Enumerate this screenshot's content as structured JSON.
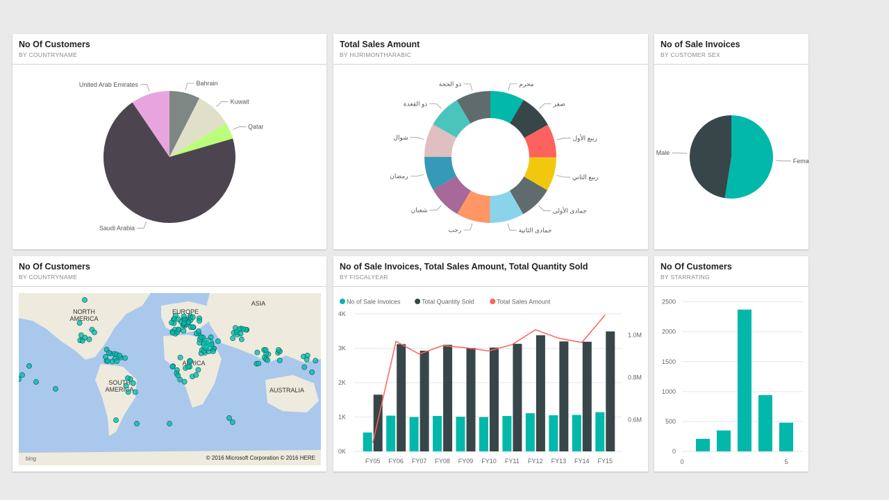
{
  "colors": {
    "teal": "#01b8aa",
    "dark": "#374649",
    "red": "#fd625e",
    "yellow": "#f2c80f",
    "gray": "#5f6b6d",
    "light_blue": "#8ad4eb",
    "orange": "#fe9666",
    "purple": "#a66999",
    "blue": "#3599b8",
    "pink": "#dfbfbf",
    "mint": "#4ac5bb",
    "plum": "#4c454f",
    "lavender": "#e8a5dd",
    "sage": "#7f8785",
    "cream": "#e0e0c8",
    "lime": "#baff7a"
  },
  "tiles": {
    "customers_by_country": {
      "title": "No Of Customers",
      "subtitle": "BY COUNTRYNAME",
      "chart_data": {
        "type": "pie",
        "slices": [
          {
            "label": "Bahrain",
            "value": 7.5,
            "color": "#7f8785"
          },
          {
            "label": "Kuwait",
            "value": 9,
            "color": "#e0e0c8"
          },
          {
            "label": "Qatar",
            "value": 4,
            "color": "#baff7a"
          },
          {
            "label": "Saudi Arabia",
            "value": 70,
            "color": "#4c454f"
          },
          {
            "label": "United Arab Emirates",
            "value": 9.5,
            "color": "#e8a5dd"
          }
        ]
      }
    },
    "sales_by_month": {
      "title": "Total Sales Amount",
      "subtitle": "BY HIJRIMONTHARABIC",
      "chart_data": {
        "type": "pie",
        "donut": true,
        "slices": [
          {
            "label": "محرم",
            "value": 8.4,
            "color": "#01b8aa"
          },
          {
            "label": "صفر",
            "value": 8.5,
            "color": "#374649"
          },
          {
            "label": "ربيع الأول",
            "value": 8.3,
            "color": "#fd625e"
          },
          {
            "label": "ربيع الثاني",
            "value": 8.3,
            "color": "#f2c80f"
          },
          {
            "label": "جمادى الأولى",
            "value": 8.3,
            "color": "#5f6b6d"
          },
          {
            "label": "جمادى الثانية",
            "value": 8.4,
            "color": "#8ad4eb"
          },
          {
            "label": "رجب",
            "value": 8.3,
            "color": "#fe9666"
          },
          {
            "label": "شعبان",
            "value": 8.4,
            "color": "#a66999"
          },
          {
            "label": "رمضان",
            "value": 8.3,
            "color": "#3599b8"
          },
          {
            "label": "شوال",
            "value": 8.2,
            "color": "#dfbfbf"
          },
          {
            "label": "ذو القعدة",
            "value": 8.3,
            "color": "#4ac5bb"
          },
          {
            "label": "ذو الحجة",
            "value": 8.5,
            "color": "#5f6b6d"
          }
        ]
      }
    },
    "invoices_by_sex": {
      "title": "No of Sale Invoices",
      "subtitle": "BY CUSTOMER SEX",
      "chart_data": {
        "type": "pie",
        "slices": [
          {
            "label": "Female",
            "value": 52.5,
            "color": "#01b8aa"
          },
          {
            "label": "Male",
            "value": 47.5,
            "color": "#374649"
          }
        ]
      }
    },
    "customers_map": {
      "title": "No Of Customers",
      "subtitle": "BY COUNTRYNAME",
      "region_labels": [
        "NORTH AMERICA",
        "SOUTH AMERICA",
        "EUROPE",
        "AFRICA",
        "ASIA",
        "AUSTRALIA"
      ],
      "copyright": "© 2016 Microsoft Corporation     © 2016 HERE",
      "bing": "bing"
    },
    "fiscal_combo": {
      "title": "No of Sale Invoices, Total Sales Amount, Total Quantity Sold",
      "subtitle": "BY FISCALYEAR",
      "chart_data": {
        "type": "bar",
        "categories": [
          "FY05",
          "FY06",
          "FY07",
          "FY08",
          "FY09",
          "FY10",
          "FY11",
          "FY12",
          "FY13",
          "FY14",
          "FY15"
        ],
        "series": [
          {
            "name": "No of Sale Invoices",
            "type": "bar",
            "color": "#01b8aa",
            "values": [
              550,
              1040,
              1000,
              1030,
              1010,
              1000,
              1030,
              1110,
              1050,
              1060,
              1140
            ]
          },
          {
            "name": "Total Quantity Sold",
            "type": "bar",
            "color": "#374649",
            "values": [
              1650,
              3120,
              2930,
              3100,
              3010,
              3020,
              3130,
              3380,
              3200,
              3190,
              3490
            ]
          },
          {
            "name": "Total Sales Amount",
            "type": "line",
            "color": "#fd625e",
            "axis": "right",
            "values": [
              490000,
              970000,
              910000,
              950000,
              940000,
              925000,
              955000,
              1025000,
              985000,
              965000,
              1095000
            ]
          }
        ],
        "y_left": {
          "range": [
            0,
            4000
          ],
          "ticks": [
            "0K",
            "1K",
            "2K",
            "3K",
            "4K"
          ]
        },
        "y_right": {
          "range": [
            450000,
            1100000
          ],
          "ticks": [
            {
              "value": 600000,
              "label": "0.6M"
            },
            {
              "value": 800000,
              "label": "0.8M"
            },
            {
              "value": 1000000,
              "label": "1.0M"
            }
          ]
        },
        "legend": [
          "No of Sale Invoices",
          "Total Quantity Sold",
          "Total Sales Amount"
        ]
      }
    },
    "customers_by_rating": {
      "title": "No Of Customers",
      "subtitle": "BY STARRATING",
      "chart_data": {
        "type": "bar",
        "x": [
          1,
          2,
          3,
          4,
          5
        ],
        "values": [
          210,
          350,
          2370,
          940,
          480
        ],
        "xlim": [
          0,
          5.8
        ],
        "ylim": [
          0,
          2600
        ],
        "y_ticks": [
          "0",
          "500",
          "1000",
          "1500",
          "2000",
          "2500"
        ],
        "x_ticks": [
          "0",
          "5"
        ],
        "color": "#01b8aa"
      }
    }
  }
}
